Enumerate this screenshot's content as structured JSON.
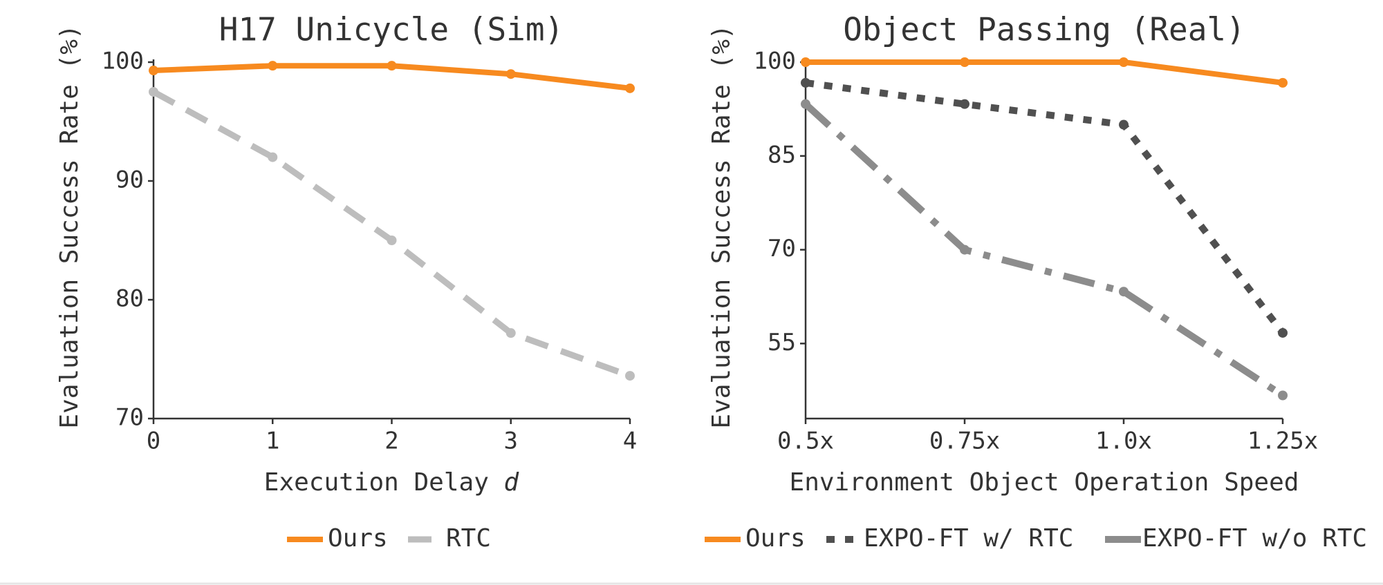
{
  "chart_data": [
    {
      "type": "line",
      "title": "H17 Unicycle (Sim)",
      "xlabel": "Execution Delay",
      "xlabel_var": "d",
      "ylabel": "Evaluation Success Rate (%)",
      "x": [
        0,
        1,
        2,
        3,
        4
      ],
      "x_tick_labels": [
        "0",
        "1",
        "2",
        "3",
        "4"
      ],
      "xlim": [
        0,
        4
      ],
      "ylim": [
        70,
        100
      ],
      "y_ticks": [
        70,
        80,
        90,
        100
      ],
      "y_tick_labels": [
        "70",
        "80",
        "90",
        "100"
      ],
      "grid": false,
      "legend_position": "bottom",
      "series": [
        {
          "name": "Ours",
          "values": [
            99.3,
            99.7,
            99.7,
            99.0,
            97.8
          ],
          "color": "#f78a1f",
          "style": "solid"
        },
        {
          "name": "RTC",
          "values": [
            97.5,
            92.0,
            85.0,
            77.2,
            73.6
          ],
          "color": "#bdbdbd",
          "style": "dashed"
        }
      ]
    },
    {
      "type": "line",
      "title": "Object Passing (Real)",
      "xlabel": "Environment Object Operation Speed",
      "ylabel": "Evaluation Success Rate (%)",
      "x": [
        0,
        1,
        2,
        3
      ],
      "x_tick_labels": [
        "0.5x",
        "0.75x",
        "1.0x",
        "1.25x"
      ],
      "xlim": [
        0,
        3
      ],
      "ylim": [
        43,
        100
      ],
      "y_ticks": [
        55,
        70,
        85,
        100
      ],
      "y_tick_labels": [
        "55",
        "70",
        "85",
        "100"
      ],
      "grid": false,
      "legend_position": "bottom",
      "series": [
        {
          "name": "Ours",
          "values": [
            100,
            100,
            100,
            96.7
          ],
          "color": "#f78a1f",
          "style": "solid"
        },
        {
          "name": "EXPO-FT w/ RTC",
          "values": [
            96.7,
            93.3,
            90.0,
            56.7
          ],
          "color": "#505050",
          "style": "dotted"
        },
        {
          "name": "EXPO-FT w/o RTC",
          "values": [
            93.3,
            70.0,
            63.3,
            46.7
          ],
          "color": "#8c8c8c",
          "style": "dashdot"
        }
      ]
    }
  ]
}
